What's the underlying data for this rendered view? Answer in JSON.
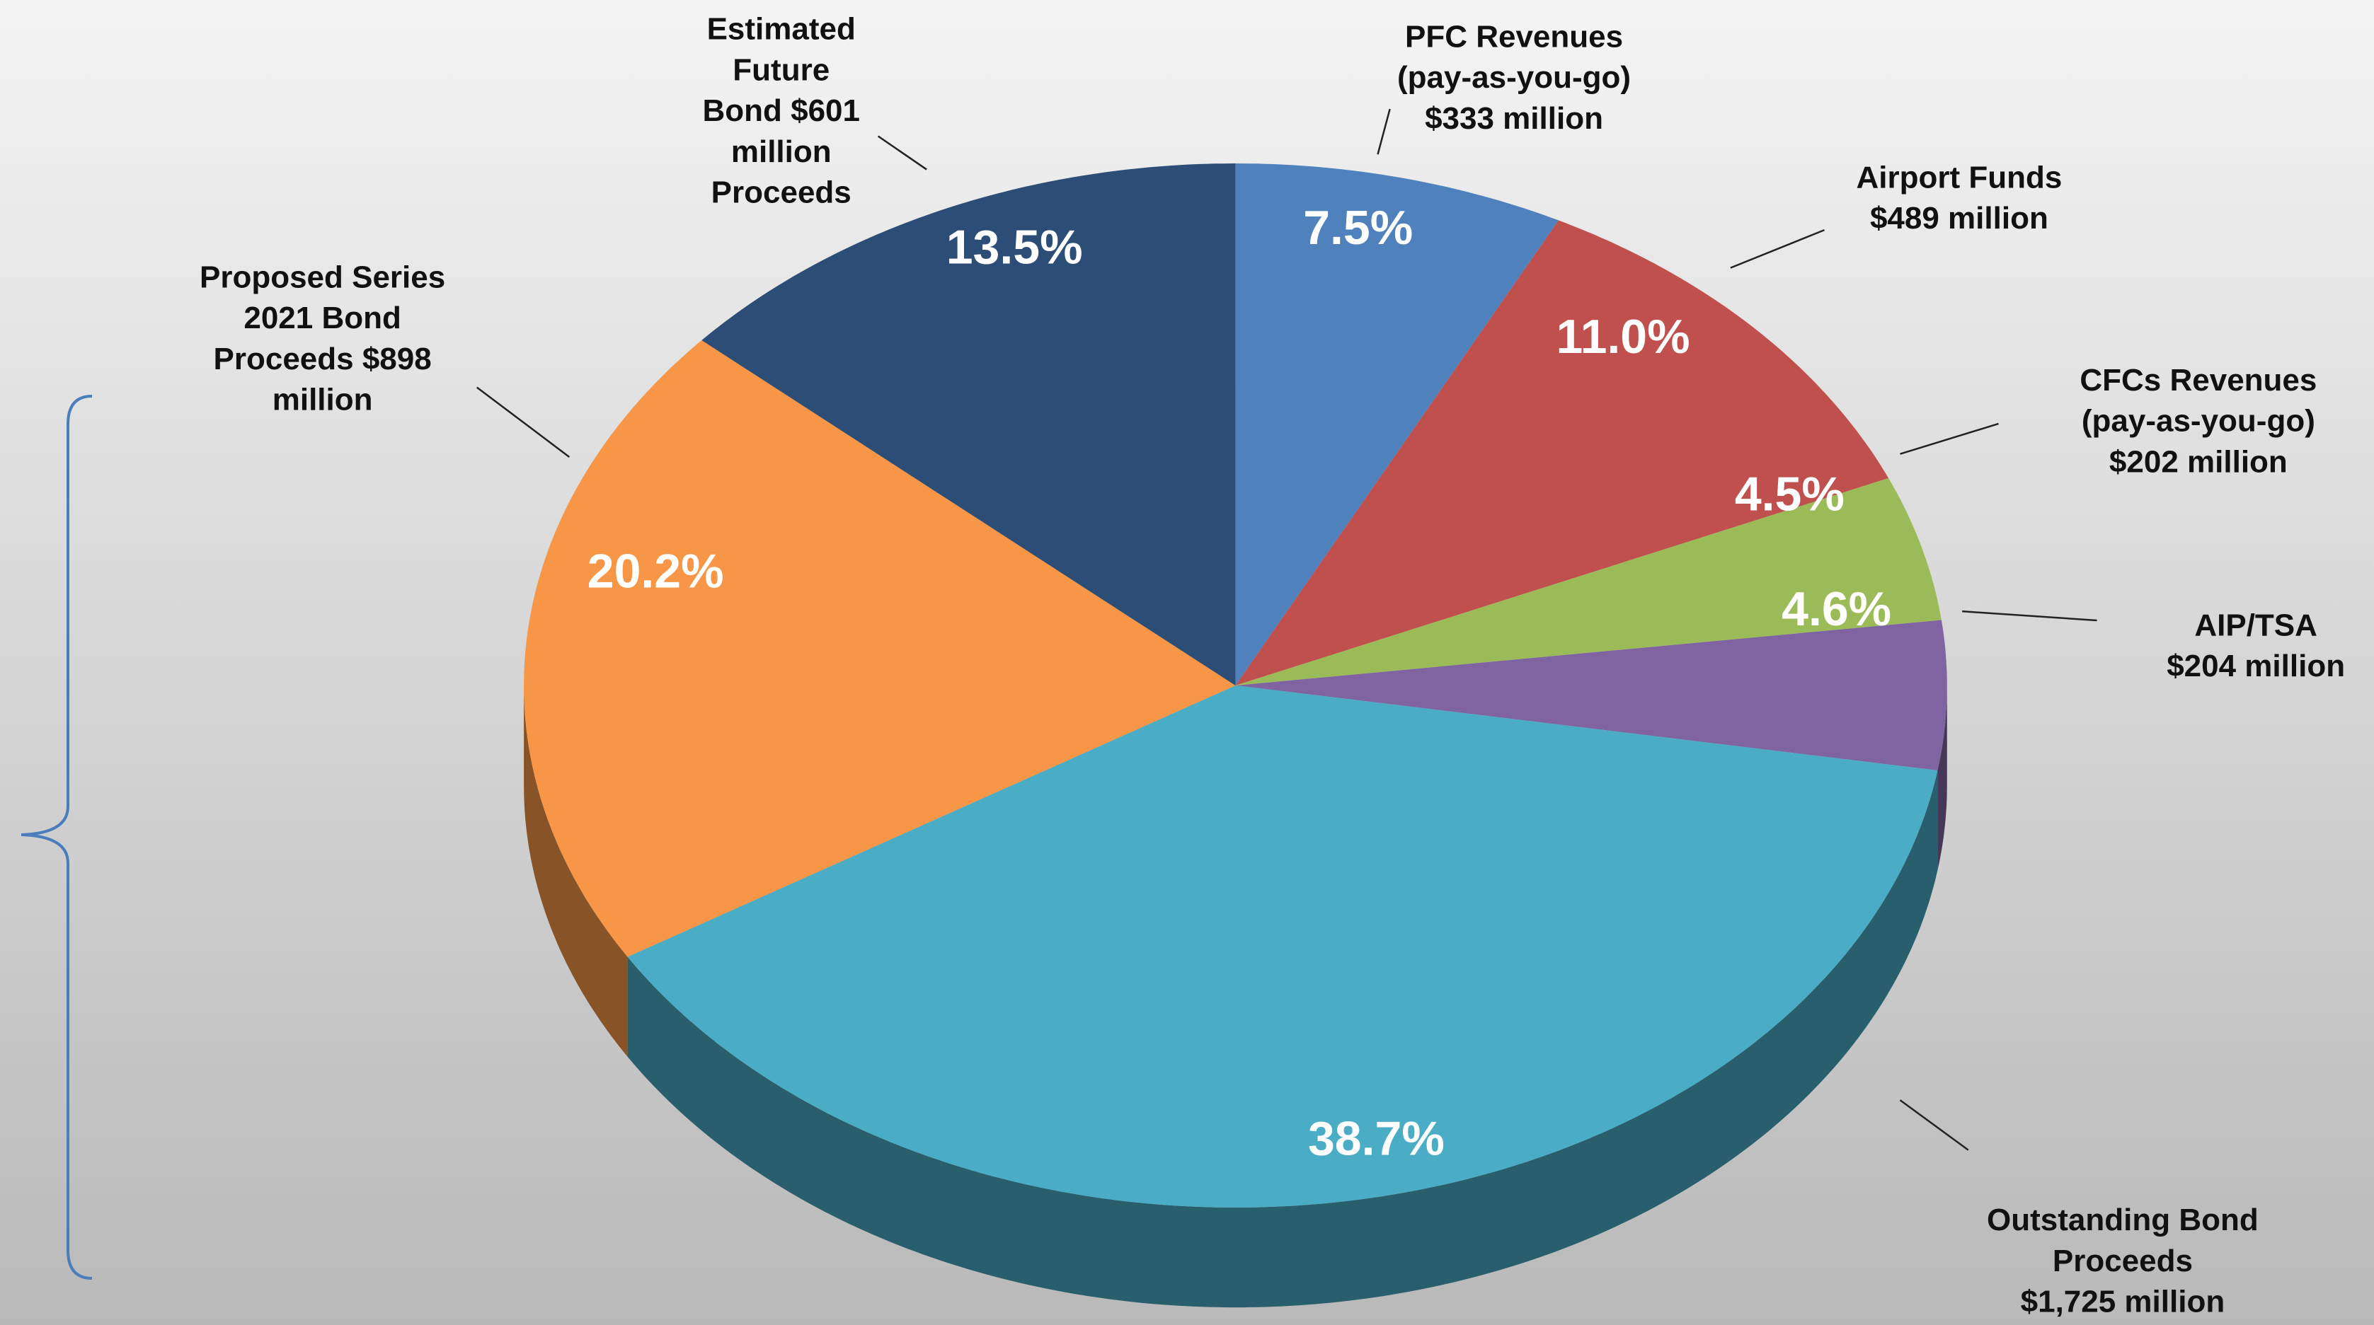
{
  "chart_data": {
    "type": "pie",
    "categories": [
      [
        "PFC Revenues",
        "(pay-as-you-go)",
        "$333 million"
      ],
      [
        "Airport Funds",
        "$489 million"
      ],
      [
        "CFCs Revenues",
        "(pay-as-you-go)",
        "$202 million"
      ],
      [
        "AIP/TSA",
        "$204 million"
      ],
      [
        "Outstanding Bond",
        "Proceeds",
        "$1,725 million"
      ],
      [
        "Proposed Series",
        "2021 Bond",
        "Proceeds $898",
        "million"
      ],
      [
        "Estimated",
        "Future",
        "Bond $601",
        "million",
        "Proceeds"
      ]
    ],
    "values": [
      7.5,
      11.0,
      4.5,
      4.6,
      38.7,
      20.2,
      13.5
    ],
    "value_labels": [
      "7.5%",
      "11.0%",
      "4.5%",
      "4.6%",
      "38.7%",
      "20.2%",
      "13.5%"
    ],
    "colors": [
      "#4f81bd",
      "#c0504d",
      "#9bbb59",
      "#8064a2",
      "#4bacc6",
      "#f79646",
      "#2c4d75"
    ]
  }
}
